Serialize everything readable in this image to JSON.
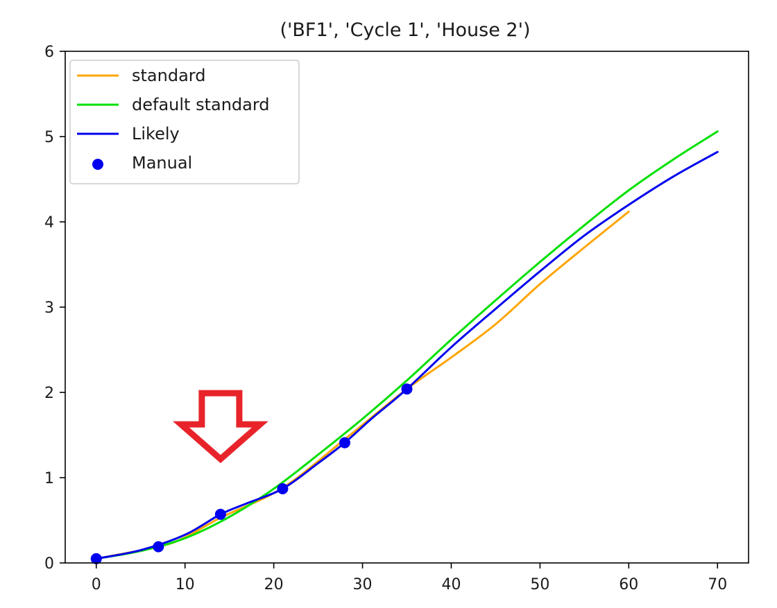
{
  "chart_data": {
    "type": "line",
    "title": "('BF1', 'Cycle 1', 'House 2')",
    "xlabel": "",
    "ylabel": "",
    "xlim": [
      -3.5,
      73.5
    ],
    "ylim": [
      0,
      6
    ],
    "x_ticks": [
      0,
      10,
      20,
      30,
      40,
      50,
      60,
      70
    ],
    "y_ticks": [
      0,
      1,
      2,
      3,
      4,
      5,
      6
    ],
    "grid": false,
    "legend_position": "top-left",
    "series": [
      {
        "name": "standard",
        "kind": "line",
        "color": "#ffa500",
        "x": [
          0,
          7,
          10,
          14,
          21,
          28,
          35,
          40,
          45,
          50,
          55,
          60
        ],
        "y": [
          0.05,
          0.19,
          0.3,
          0.53,
          0.88,
          1.45,
          2.04,
          2.41,
          2.8,
          3.27,
          3.7,
          4.12
        ]
      },
      {
        "name": "default standard",
        "kind": "line",
        "color": "#00e000",
        "x": [
          0,
          5,
          10,
          15,
          20,
          25,
          30,
          35,
          40,
          45,
          50,
          55,
          60,
          65,
          70
        ],
        "y": [
          0.05,
          0.14,
          0.29,
          0.54,
          0.87,
          1.27,
          1.69,
          2.14,
          2.62,
          3.08,
          3.53,
          3.96,
          4.37,
          4.73,
          5.06
        ]
      },
      {
        "name": "Likely",
        "kind": "line",
        "color": "#0000ee",
        "x": [
          0,
          5,
          10,
          14,
          17,
          21,
          25,
          28,
          31,
          35,
          40,
          45,
          50,
          55,
          60,
          65,
          70
        ],
        "y": [
          0.05,
          0.15,
          0.33,
          0.57,
          0.7,
          0.87,
          1.17,
          1.41,
          1.69,
          2.04,
          2.53,
          2.98,
          3.42,
          3.84,
          4.2,
          4.53,
          4.82
        ]
      },
      {
        "name": "Manual",
        "kind": "scatter",
        "color": "#0000ee",
        "x": [
          0,
          7,
          14,
          21,
          28,
          35
        ],
        "y": [
          0.05,
          0.19,
          0.57,
          0.87,
          1.41,
          2.04
        ]
      }
    ],
    "annotations": [
      {
        "type": "arrow-down",
        "color": "#e8242a",
        "x": 14,
        "y": 1.3
      }
    ]
  }
}
